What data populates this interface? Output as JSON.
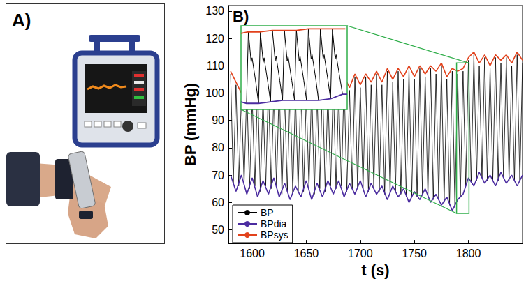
{
  "panel_a": {
    "label": "A)"
  },
  "chart_data": {
    "type": "line",
    "label": "B)",
    "xlabel": "t (s)",
    "ylabel": "BP (mmHg)",
    "xlim": [
      1578,
      1850
    ],
    "xticks": [
      1600,
      1650,
      1700,
      1750,
      1800
    ],
    "ylim": [
      45,
      132
    ],
    "yticks": [
      50,
      60,
      70,
      80,
      90,
      100,
      110,
      120,
      130
    ],
    "grid": false,
    "legend": "lower left",
    "series": [
      {
        "name": "BP",
        "color": "#000000",
        "x": [
          1580,
          1582.5,
          1585,
          1587.5,
          1590,
          1592.5,
          1595,
          1597.5,
          1600,
          1602.5,
          1605,
          1607.5,
          1610,
          1612.5,
          1615,
          1617.5,
          1620,
          1622.5,
          1625,
          1627.5,
          1630,
          1632.5,
          1635,
          1637.5,
          1640,
          1642.5,
          1645,
          1647.5,
          1650,
          1652.5,
          1655,
          1657.5,
          1660,
          1662.5,
          1665,
          1667.5,
          1670,
          1672.5,
          1675,
          1677.5,
          1680,
          1682.5,
          1685,
          1687.5,
          1690,
          1692.5,
          1695,
          1697.5,
          1700,
          1702.5,
          1705,
          1707.5,
          1710,
          1712.5,
          1715,
          1717.5,
          1720,
          1722.5,
          1725,
          1727.5,
          1730,
          1732.5,
          1735,
          1737.5,
          1740,
          1742.5,
          1745,
          1747.5,
          1750,
          1752.5,
          1755,
          1757.5,
          1760,
          1762.5,
          1765,
          1767.5,
          1770,
          1772.5,
          1775,
          1777.5,
          1780,
          1782.5,
          1785,
          1787.5,
          1790,
          1792.5,
          1795,
          1797.5,
          1800,
          1802.5,
          1805,
          1807.5,
          1810,
          1812.5,
          1815,
          1817.5,
          1820,
          1822.5,
          1825,
          1827.5,
          1830,
          1832.5,
          1835,
          1837.5,
          1840,
          1842.5,
          1845,
          1847.5,
          1850
        ],
        "values": [
          107,
          67,
          103,
          66,
          99,
          67,
          102,
          65,
          98,
          66,
          103,
          64,
          99,
          66,
          103,
          65,
          100,
          66,
          104,
          63,
          99,
          64,
          103,
          63,
          100,
          64,
          104,
          64,
          99,
          65,
          103,
          63,
          100,
          65,
          105,
          64,
          101,
          66,
          104,
          65,
          100,
          66,
          105,
          64,
          101,
          65,
          106,
          65,
          102,
          65,
          106,
          64,
          103,
          65,
          107,
          64,
          103,
          63,
          108,
          63,
          104,
          64,
          108,
          63,
          105,
          62,
          109,
          62,
          105,
          62,
          109,
          63,
          106,
          62,
          109,
          61,
          107,
          61,
          110,
          60,
          105,
          59,
          108,
          58,
          107,
          62,
          108,
          66,
          112,
          67,
          114,
          68,
          110,
          69,
          113,
          68,
          109,
          68,
          113,
          68,
          111,
          69,
          113,
          68,
          110,
          68,
          114,
          68,
          111
        ]
      },
      {
        "name": "BPdia",
        "color": "#4b2ca0",
        "x": [
          1580,
          1585,
          1590,
          1595,
          1600,
          1605,
          1610,
          1615,
          1620,
          1625,
          1630,
          1635,
          1640,
          1645,
          1650,
          1655,
          1660,
          1665,
          1670,
          1675,
          1680,
          1685,
          1690,
          1695,
          1700,
          1705,
          1710,
          1715,
          1720,
          1725,
          1730,
          1735,
          1740,
          1745,
          1750,
          1755,
          1760,
          1765,
          1770,
          1775,
          1780,
          1785,
          1790,
          1795,
          1800,
          1805,
          1810,
          1815,
          1820,
          1825,
          1830,
          1835,
          1840,
          1845,
          1850
        ],
        "values": [
          70,
          64,
          70,
          63,
          69,
          62,
          68,
          63,
          69,
          62,
          67,
          61,
          66,
          62,
          68,
          61,
          67,
          62,
          68,
          63,
          68,
          62,
          67,
          63,
          68,
          62,
          67,
          63,
          66,
          61,
          66,
          62,
          65,
          60,
          64,
          61,
          65,
          60,
          63,
          59,
          62,
          57,
          61,
          63,
          69,
          66,
          71,
          67,
          70,
          66,
          71,
          67,
          70,
          66,
          70
        ]
      },
      {
        "name": "BPsys",
        "color": "#e2421c",
        "x": [
          1580,
          1585,
          1590,
          1595,
          1600,
          1605,
          1610,
          1615,
          1620,
          1625,
          1630,
          1635,
          1640,
          1645,
          1650,
          1655,
          1660,
          1665,
          1670,
          1675,
          1680,
          1685,
          1690,
          1695,
          1700,
          1705,
          1710,
          1715,
          1720,
          1725,
          1730,
          1735,
          1740,
          1745,
          1750,
          1755,
          1760,
          1765,
          1770,
          1775,
          1780,
          1785,
          1790,
          1795,
          1800,
          1805,
          1810,
          1815,
          1820,
          1825,
          1830,
          1835,
          1840,
          1845,
          1850
        ],
        "values": [
          108,
          104,
          100,
          103,
          99,
          104,
          100,
          104,
          101,
          105,
          100,
          104,
          101,
          105,
          100,
          104,
          101,
          106,
          102,
          105,
          101,
          106,
          102,
          107,
          103,
          107,
          104,
          108,
          104,
          109,
          105,
          109,
          106,
          110,
          106,
          110,
          107,
          110,
          108,
          111,
          106,
          109,
          108,
          109,
          113,
          115,
          111,
          114,
          110,
          114,
          112,
          114,
          111,
          115,
          112
        ]
      }
    ],
    "inset": {
      "xlim": [
        1789,
        1800.5
      ],
      "ylim": [
        56,
        111
      ],
      "series": [
        {
          "name": "BP",
          "color": "#000000",
          "x": [
            1789.6,
            1789.8,
            1790.1,
            1790.2,
            1790.6,
            1790.9,
            1791.1,
            1791.4,
            1791.5,
            1791.9,
            1792.2,
            1792.4,
            1792.7,
            1792.8,
            1793.2,
            1793.5,
            1793.7,
            1794.0,
            1794.1,
            1794.5,
            1794.8,
            1795.0,
            1795.3,
            1795.4,
            1795.8,
            1796.1,
            1796.3,
            1796.6,
            1796.7,
            1797.1,
            1797.4,
            1797.6,
            1797.9,
            1798.0,
            1798.4,
            1798.7,
            1798.9,
            1799.2,
            1799.3,
            1799.7,
            1800.0
          ],
          "values": [
            60,
            107,
            87,
            90,
            74,
            60,
            107,
            87,
            90,
            74,
            61,
            108,
            88,
            91,
            75,
            62,
            108,
            88,
            91,
            75,
            62,
            108,
            88,
            91,
            75,
            62,
            109,
            89,
            92,
            76,
            62,
            109,
            89,
            92,
            76,
            63,
            109,
            89,
            92,
            77,
            66
          ]
        },
        {
          "name": "BPdia",
          "color": "#4b2ca0",
          "x": [
            1789,
            1789.6,
            1790.9,
            1792.2,
            1793.5,
            1794.8,
            1796.1,
            1797.4,
            1798.7,
            1800.0,
            1800.5
          ],
          "values": [
            61,
            60,
            60,
            61,
            62,
            62,
            62,
            62,
            63,
            66,
            66
          ]
        },
        {
          "name": "BPsys",
          "color": "#e2421c",
          "x": [
            1789,
            1789.8,
            1791.1,
            1792.4,
            1793.7,
            1795.0,
            1796.3,
            1797.6,
            1798.9,
            1800.3
          ],
          "values": [
            106,
            107,
            107,
            108,
            108,
            108,
            109,
            109,
            109,
            109
          ]
        }
      ]
    }
  }
}
